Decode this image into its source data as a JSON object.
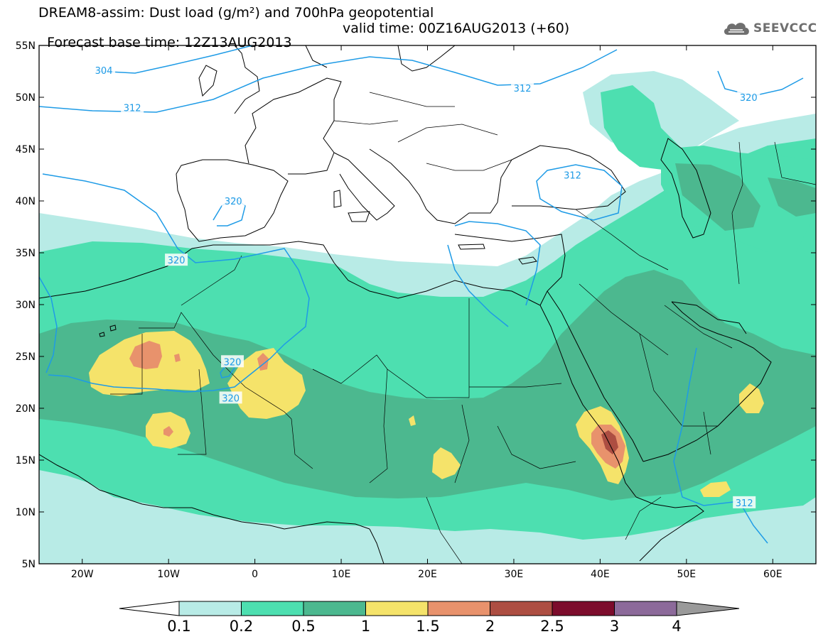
{
  "title_line1": "DREAM8-assim: Dust load (g/m²) and 700hPa geopotential",
  "title_line2_base": "Forecast base time: 12Z13AUG2013",
  "title_line2_valid": "valid time: 00Z16AUG2013 (+60)",
  "logo_text": "SEEVCCC",
  "lat_labels": [
    "55N",
    "50N",
    "45N",
    "40N",
    "35N",
    "30N",
    "25N",
    "20N",
    "15N",
    "10N",
    "5N"
  ],
  "lat_values": [
    55,
    50,
    45,
    40,
    35,
    30,
    25,
    20,
    15,
    10,
    5
  ],
  "lon_labels": [
    "20W",
    "10W",
    "0",
    "10E",
    "20E",
    "30E",
    "40E",
    "50E",
    "60E"
  ],
  "lon_values": [
    -20,
    -10,
    0,
    10,
    20,
    30,
    40,
    50,
    60
  ],
  "extent": {
    "lon_min": -25,
    "lon_max": 65,
    "lat_min": 5,
    "lat_max": 55
  },
  "contour_labels": [
    {
      "text": "304",
      "lon": -17.5,
      "lat": 52.6
    },
    {
      "text": "312",
      "lon": -14.2,
      "lat": 49.0
    },
    {
      "text": "312",
      "lon": 31.0,
      "lat": 50.9
    },
    {
      "text": "320",
      "lon": 57.2,
      "lat": 50.0
    },
    {
      "text": "312",
      "lon": 36.8,
      "lat": 42.5
    },
    {
      "text": "320",
      "lon": -2.5,
      "lat": 40.0
    },
    {
      "text": "320",
      "lon": -9.1,
      "lat": 34.3
    },
    {
      "text": "320",
      "lon": -2.6,
      "lat": 24.5
    },
    {
      "text": "320",
      "lon": -2.8,
      "lat": 21.0
    },
    {
      "text": "312",
      "lon": 56.7,
      "lat": 10.9
    }
  ],
  "legend": {
    "labels": [
      "0.1",
      "0.2",
      "0.5",
      "1",
      "1.5",
      "2",
      "2.5",
      "3",
      "4"
    ],
    "colors": [
      "#b8ebe6",
      "#4ddfb0",
      "#4cb88f",
      "#f5e36a",
      "#e8926c",
      "#ad4e42",
      "#7c0c2c",
      "#8c6a9a"
    ],
    "over_color": "#9a9a9a"
  }
}
